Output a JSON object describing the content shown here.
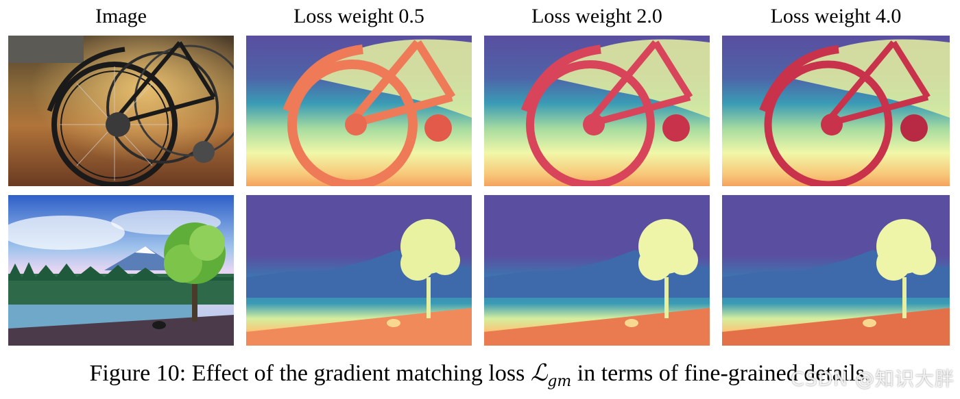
{
  "columns": [
    {
      "header": "Image"
    },
    {
      "header": "Loss weight 0.5"
    },
    {
      "header": "Loss weight 2.0"
    },
    {
      "header": "Loss weight 4.0"
    }
  ],
  "rows": [
    {
      "subject": "bicycle-wheel"
    },
    {
      "subject": "landscape-tree"
    }
  ],
  "caption": {
    "prefix": "Figure 10: Effect of the gradient matching loss ",
    "math_symbol": "ℒ",
    "math_subscript": "gm",
    "suffix": " in terms of fine-grained details."
  },
  "watermark": "CSDN @知识大胖",
  "colors": {
    "depth_far": "#5a4ea0",
    "depth_mid": "#3a9bb5",
    "depth_near_light": "#f1f7a8",
    "depth_near_warm": "#f4a35e",
    "depth_closest": "#c8324a"
  }
}
